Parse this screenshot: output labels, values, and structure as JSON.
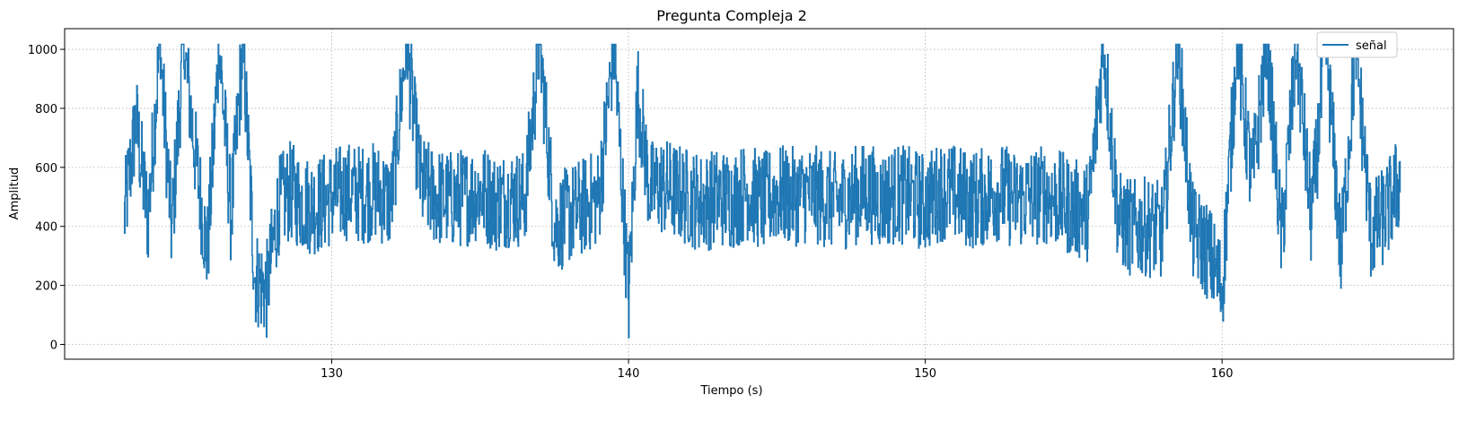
{
  "chart_data": {
    "type": "line",
    "title": "Pregunta Compleja 2",
    "xlabel": "Tiempo (s)",
    "ylabel": "Amplitud",
    "xlim": [
      121,
      167.8
    ],
    "ylim": [
      -50,
      1070
    ],
    "xticks": [
      130,
      140,
      150,
      160
    ],
    "yticks": [
      0,
      200,
      400,
      600,
      800,
      1000
    ],
    "grid": true,
    "grid_style": "dotted",
    "legend": {
      "position": "top-right",
      "entries": [
        "señal"
      ]
    },
    "color": "#1f77b4",
    "series": [
      {
        "name": "señal",
        "x_start": 123.0,
        "x_end": 166.0,
        "anchors": [
          [
            123.0,
            430
          ],
          [
            123.4,
            760
          ],
          [
            123.8,
            420
          ],
          [
            124.2,
            1017
          ],
          [
            124.6,
            380
          ],
          [
            125.0,
            1017
          ],
          [
            125.4,
            640
          ],
          [
            125.8,
            300
          ],
          [
            126.2,
            1017
          ],
          [
            126.6,
            430
          ],
          [
            127.0,
            1017
          ],
          [
            127.4,
            230
          ],
          [
            127.8,
            180
          ],
          [
            128.2,
            470
          ],
          [
            128.6,
            520
          ],
          [
            129.0,
            480
          ],
          [
            129.5,
            470
          ],
          [
            130.0,
            500
          ],
          [
            130.5,
            520
          ],
          [
            131.0,
            510
          ],
          [
            131.5,
            520
          ],
          [
            132.0,
            480
          ],
          [
            132.5,
            1017
          ],
          [
            133.0,
            540
          ],
          [
            133.5,
            500
          ],
          [
            134.0,
            490
          ],
          [
            134.5,
            500
          ],
          [
            135.0,
            520
          ],
          [
            135.5,
            480
          ],
          [
            136.0,
            500
          ],
          [
            136.5,
            490
          ],
          [
            137.0,
            1017
          ],
          [
            137.5,
            400
          ],
          [
            138.0,
            440
          ],
          [
            138.5,
            470
          ],
          [
            139.0,
            500
          ],
          [
            139.5,
            1017
          ],
          [
            140.0,
            150
          ],
          [
            140.3,
            860
          ],
          [
            140.7,
            520
          ],
          [
            141.0,
            540
          ],
          [
            141.5,
            520
          ],
          [
            142.0,
            500
          ],
          [
            142.5,
            480
          ],
          [
            143.0,
            500
          ],
          [
            143.5,
            490
          ],
          [
            144.0,
            520
          ],
          [
            144.5,
            480
          ],
          [
            145.0,
            510
          ],
          [
            145.5,
            500
          ],
          [
            146.0,
            510
          ],
          [
            146.5,
            500
          ],
          [
            147.0,
            480
          ],
          [
            147.5,
            500
          ],
          [
            148.0,
            520
          ],
          [
            148.5,
            490
          ],
          [
            149.0,
            510
          ],
          [
            149.5,
            500
          ],
          [
            150.0,
            480
          ],
          [
            150.5,
            520
          ],
          [
            151.0,
            510
          ],
          [
            151.5,
            490
          ],
          [
            152.0,
            500
          ],
          [
            152.5,
            520
          ],
          [
            153.0,
            490
          ],
          [
            153.5,
            500
          ],
          [
            154.0,
            510
          ],
          [
            154.5,
            490
          ],
          [
            155.0,
            460
          ],
          [
            155.5,
            450
          ],
          [
            156.0,
            1017
          ],
          [
            156.5,
            420
          ],
          [
            157.0,
            390
          ],
          [
            157.5,
            400
          ],
          [
            158.0,
            380
          ],
          [
            158.5,
            1017
          ],
          [
            159.0,
            380
          ],
          [
            159.5,
            320
          ],
          [
            160.0,
            190
          ],
          [
            160.5,
            1017
          ],
          [
            161.0,
            540
          ],
          [
            161.5,
            1017
          ],
          [
            162.0,
            350
          ],
          [
            162.5,
            1017
          ],
          [
            163.0,
            420
          ],
          [
            163.5,
            1017
          ],
          [
            164.0,
            300
          ],
          [
            164.5,
            1017
          ],
          [
            165.0,
            380
          ],
          [
            165.5,
            440
          ],
          [
            166.0,
            560
          ]
        ],
        "jitter": 170,
        "clip": [
          0,
          1017
        ]
      }
    ]
  }
}
